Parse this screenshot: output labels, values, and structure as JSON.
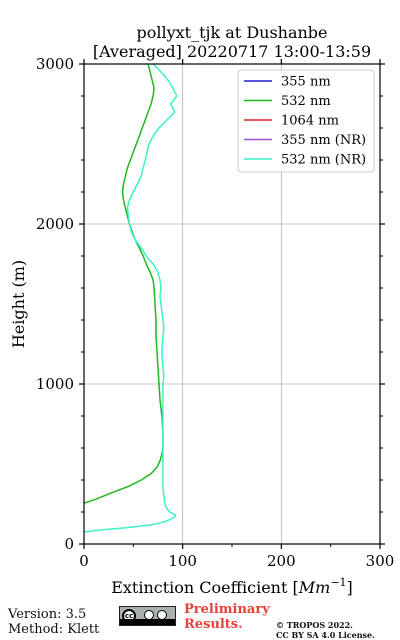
{
  "chart_data": {
    "type": "line",
    "title": [
      "pollyxt_tjk at Dushanbe",
      "[Averaged] 20220717 13:00-13:59"
    ],
    "xlabel": "Extinction Coefficient [Mm⁻¹]",
    "xlabel_main": "Extinction Coefficient [",
    "xlabel_unit": "Mm",
    "xlabel_sup": "−1",
    "xlabel_close": "]",
    "ylabel": "Height (m)",
    "xlim": [
      0,
      300
    ],
    "ylim": [
      0,
      3000
    ],
    "xticks": [
      0,
      100,
      200,
      300
    ],
    "yticks": [
      0,
      1000,
      2000,
      3000
    ],
    "grid": true,
    "legend_position": "top-right",
    "series": [
      {
        "name": "355 nm",
        "color": "#1f1fd6",
        "x": [],
        "y": []
      },
      {
        "name": "532 nm",
        "color": "#1fb81f",
        "y": [
          255,
          280,
          320,
          360,
          400,
          440,
          480,
          520,
          560,
          600,
          650,
          700,
          800,
          900,
          1000,
          1100,
          1200,
          1300,
          1400,
          1500,
          1600,
          1650,
          1700,
          1750,
          1800,
          1850,
          1900,
          1950,
          2000,
          2050,
          2100,
          2150,
          2200,
          2250,
          2300,
          2350,
          2400,
          2450,
          2500,
          2550,
          2600,
          2650,
          2700,
          2750,
          2800,
          2850,
          2900,
          2950,
          3000
        ],
        "x": [
          0,
          12,
          28,
          45,
          58,
          68,
          74,
          77,
          79,
          80,
          80,
          80,
          79,
          77,
          76,
          75,
          74,
          73,
          73,
          72,
          71,
          70,
          67,
          63,
          60,
          56,
          52,
          49,
          46,
          44,
          42,
          40,
          39,
          40,
          42,
          44,
          47,
          50,
          53,
          56,
          59,
          62,
          65,
          68,
          70,
          71,
          69,
          67,
          65
        ]
      },
      {
        "name": "1064 nm",
        "color": "#e02020",
        "x": [],
        "y": []
      },
      {
        "name": "355 nm (NR)",
        "color": "#a04fe0",
        "x": [],
        "y": []
      },
      {
        "name": "532 nm (NR)",
        "color": "#3cf0c8",
        "y": [
          75,
          90,
          100,
          110,
          120,
          130,
          140,
          150,
          160,
          170,
          180,
          190,
          200,
          220,
          250,
          300,
          350,
          400,
          500,
          600,
          700,
          800,
          900,
          1000,
          1050,
          1100,
          1200,
          1300,
          1350,
          1400,
          1450,
          1500,
          1550,
          1600,
          1650,
          1700,
          1750,
          1800,
          1850,
          1900,
          1950,
          2000,
          2050,
          2100,
          2150,
          2200,
          2250,
          2300,
          2350,
          2400,
          2450,
          2500,
          2550,
          2600,
          2650,
          2700,
          2750,
          2800,
          2850,
          2900,
          2950,
          3000
        ],
        "x": [
          0,
          20,
          40,
          55,
          68,
          76,
          82,
          86,
          89,
          92,
          93,
          90,
          87,
          84,
          82,
          81,
          80,
          80,
          80,
          80,
          80,
          80,
          80,
          80,
          81,
          80,
          79,
          80,
          81,
          80,
          79,
          78,
          77,
          78,
          77,
          75,
          70,
          63,
          58,
          52,
          48,
          46,
          45,
          44,
          46,
          50,
          54,
          58,
          60,
          62,
          64,
          66,
          70,
          76,
          84,
          92,
          88,
          94,
          90,
          85,
          78,
          70
        ]
      }
    ]
  },
  "footer": {
    "version": "Version: 3.5",
    "method": "Method: Klett",
    "preliminary_line1": "Preliminary",
    "preliminary_line2": "Results.",
    "copyright_line1": "© TROPOS 2022.",
    "copyright_line2": "CC BY SA 4.0 License."
  }
}
